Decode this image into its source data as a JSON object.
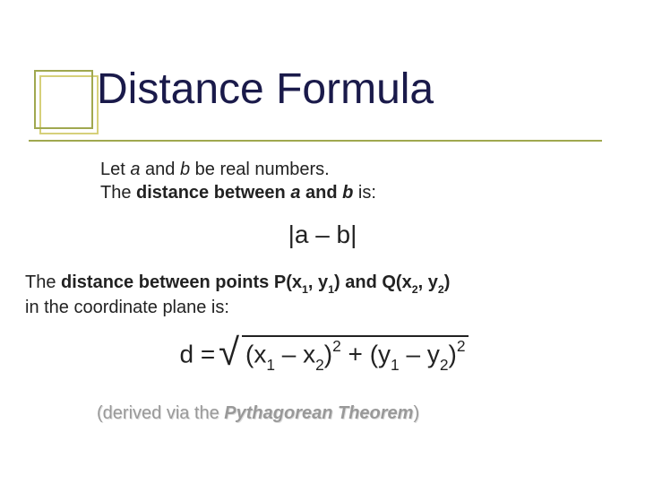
{
  "decor": {
    "outer_border_color": "#d6d07a",
    "inner_border_color": "#a0a84f",
    "line_color": "#a0a84f"
  },
  "title": "Distance Formula",
  "intro": {
    "let_prefix": "Let ",
    "a": "a",
    "and1": " and ",
    "b": "b",
    "be_real": " be real numbers.",
    "line2_prefix": "The ",
    "distance_between": "distance between ",
    "a2": "a",
    "and2": " and ",
    "b2": "b",
    "is": " is:"
  },
  "formula1": "|a – b|",
  "pq": {
    "prefix": "The ",
    "dbp": "distance between points P(x",
    "s1": "1",
    "comma_y": ", y",
    "s1b": "1",
    "and_q": ") and Q(x",
    "s2": "2",
    "comma_y2": ", y",
    "s2b": "2",
    "close": ")",
    "line2": "in the coordinate plane is:"
  },
  "formula2": {
    "d_eq": "d = ",
    "open1": "(x",
    "s1": "1",
    "minus_x": " – x",
    "s2": "2",
    "close_sq": ")",
    "sq": "2",
    "plus": " +  ",
    "open2": "(y",
    "s1b": "1",
    "minus_y": " – y",
    "s2b": "2",
    "close_sq2": ")",
    "sq2": "2"
  },
  "derived": {
    "open": "(derived via the ",
    "thm": "Pythagorean Theorem",
    "close": ")"
  }
}
